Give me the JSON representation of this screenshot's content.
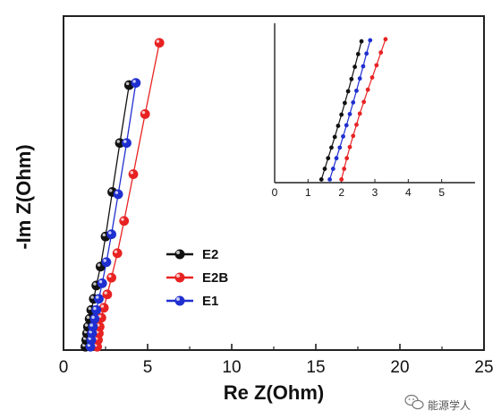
{
  "chart_data": [
    {
      "type": "scatter",
      "panel": "main",
      "xlabel": "Re Z(Ohm)",
      "ylabel": "-Im Z(Ohm)",
      "xlim": [
        0,
        25
      ],
      "x_ticks": [
        "0",
        "5",
        "10",
        "15",
        "20",
        "25"
      ],
      "y_ticks": [],
      "ylim": [
        0,
        30
      ],
      "grid": false,
      "legend_position": "lower-left",
      "series": [
        {
          "name": "E2",
          "color": "#111111",
          "points": [
            [
              1.3,
              0.3
            ],
            [
              1.35,
              0.9
            ],
            [
              1.4,
              1.5
            ],
            [
              1.45,
              2.1
            ],
            [
              1.55,
              2.8
            ],
            [
              1.65,
              3.6
            ],
            [
              1.8,
              4.6
            ],
            [
              1.95,
              5.8
            ],
            [
              2.2,
              7.5
            ],
            [
              2.5,
              10.2
            ],
            [
              2.9,
              14.2
            ],
            [
              3.35,
              18.6
            ],
            [
              3.9,
              23.8
            ]
          ]
        },
        {
          "name": "E2B",
          "color": "#e82222",
          "points": [
            [
              2.0,
              0.3
            ],
            [
              2.05,
              0.9
            ],
            [
              2.1,
              1.5
            ],
            [
              2.15,
              2.1
            ],
            [
              2.25,
              2.9
            ],
            [
              2.4,
              3.8
            ],
            [
              2.6,
              5.0
            ],
            [
              2.85,
              6.5
            ],
            [
              3.2,
              8.7
            ],
            [
              3.6,
              11.6
            ],
            [
              4.15,
              15.8
            ],
            [
              4.85,
              21.2
            ],
            [
              5.7,
              27.6
            ]
          ]
        },
        {
          "name": "E1",
          "color": "#1f2fd0",
          "points": [
            [
              1.6,
              0.3
            ],
            [
              1.65,
              0.9
            ],
            [
              1.7,
              1.5
            ],
            [
              1.75,
              2.1
            ],
            [
              1.85,
              2.8
            ],
            [
              1.95,
              3.6
            ],
            [
              2.1,
              4.6
            ],
            [
              2.3,
              6.0
            ],
            [
              2.55,
              7.9
            ],
            [
              2.85,
              10.4
            ],
            [
              3.25,
              14.0
            ],
            [
              3.75,
              18.6
            ],
            [
              4.3,
              24.0
            ]
          ]
        }
      ]
    },
    {
      "type": "scatter",
      "panel": "inset",
      "xlim": [
        0,
        6
      ],
      "x_ticks": [
        "0",
        "1",
        "2",
        "3",
        "4",
        "5"
      ],
      "ylim": [
        0,
        30
      ],
      "series": [
        {
          "name": "E2",
          "color": "#111111",
          "points": [
            [
              1.4,
              0.6
            ],
            [
              1.5,
              2.6
            ],
            [
              1.6,
              4.6
            ],
            [
              1.7,
              6.6
            ],
            [
              1.8,
              8.6
            ],
            [
              1.9,
              10.7
            ],
            [
              2.0,
              12.8
            ],
            [
              2.1,
              15.0
            ],
            [
              2.2,
              17.2
            ],
            [
              2.3,
              19.5
            ],
            [
              2.4,
              21.8
            ],
            [
              2.5,
              24.2
            ],
            [
              2.6,
              26.6
            ]
          ]
        },
        {
          "name": "E2B",
          "color": "#e82222",
          "points": [
            [
              2.0,
              0.6
            ],
            [
              2.08,
              2.6
            ],
            [
              2.16,
              4.6
            ],
            [
              2.25,
              6.7
            ],
            [
              2.35,
              8.8
            ],
            [
              2.45,
              10.9
            ],
            [
              2.55,
              13.0
            ],
            [
              2.67,
              15.2
            ],
            [
              2.79,
              17.5
            ],
            [
              2.92,
              19.8
            ],
            [
              3.05,
              22.1
            ],
            [
              3.18,
              24.5
            ],
            [
              3.32,
              27.0
            ]
          ]
        },
        {
          "name": "E1",
          "color": "#1f2fd0",
          "points": [
            [
              1.65,
              0.6
            ],
            [
              1.75,
              2.6
            ],
            [
              1.85,
              4.6
            ],
            [
              1.95,
              6.6
            ],
            [
              2.05,
              8.7
            ],
            [
              2.15,
              10.8
            ],
            [
              2.25,
              12.9
            ],
            [
              2.35,
              15.1
            ],
            [
              2.45,
              17.3
            ],
            [
              2.55,
              19.6
            ],
            [
              2.65,
              21.9
            ],
            [
              2.75,
              24.3
            ],
            [
              2.86,
              26.8
            ]
          ]
        }
      ]
    }
  ],
  "watermark": {
    "text": "能源学人",
    "icon": "wechat-icon"
  }
}
